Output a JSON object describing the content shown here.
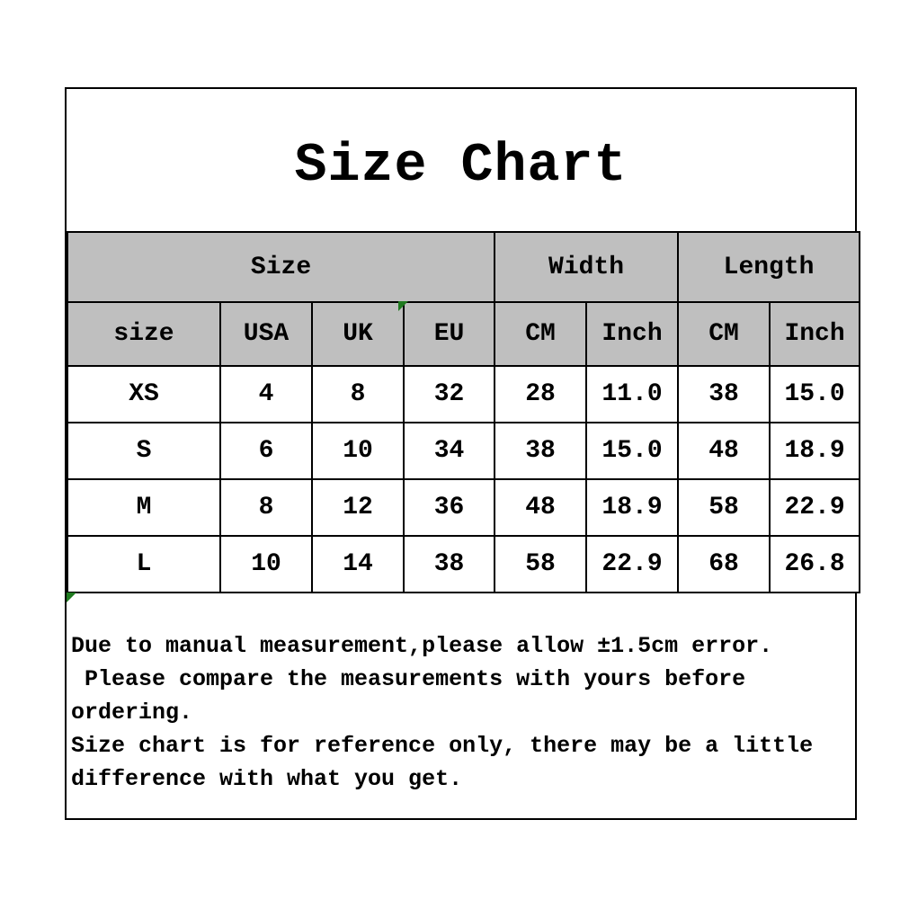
{
  "title": "Size Chart",
  "chart_data": {
    "type": "table",
    "title": "Size Chart",
    "group_headers": [
      {
        "label": "Size",
        "colspan": 4
      },
      {
        "label": "Width",
        "colspan": 2
      },
      {
        "label": "Length",
        "colspan": 2
      }
    ],
    "columns": [
      "size",
      "USA",
      "UK",
      "EU",
      "CM",
      "Inch",
      "CM",
      "Inch"
    ],
    "rows": [
      [
        "XS",
        "4",
        "8",
        "32",
        "28",
        "11.0",
        "38",
        "15.0"
      ],
      [
        "S",
        "6",
        "10",
        "34",
        "38",
        "15.0",
        "48",
        "18.9"
      ],
      [
        "M",
        "8",
        "12",
        "36",
        "48",
        "18.9",
        "58",
        "22.9"
      ],
      [
        "L",
        "10",
        "14",
        "38",
        "58",
        "22.9",
        "68",
        "26.8"
      ]
    ]
  },
  "notes": {
    "lines": [
      "Due to manual measurement,please allow ±1.5cm error.",
      " Please compare the measurements with yours before",
      "ordering.",
      "Size chart is for reference only, there may be a little",
      "difference with what you get."
    ]
  },
  "icons": {
    "eu_cell_flag": "green-corner-triangle",
    "notes_cell_flag": "green-corner-triangle"
  },
  "colors": {
    "background": "#ffffff",
    "text": "#000000",
    "border": "#000000",
    "header_bg": "#bfbfbf",
    "flag_green": "#1f7a1f"
  }
}
